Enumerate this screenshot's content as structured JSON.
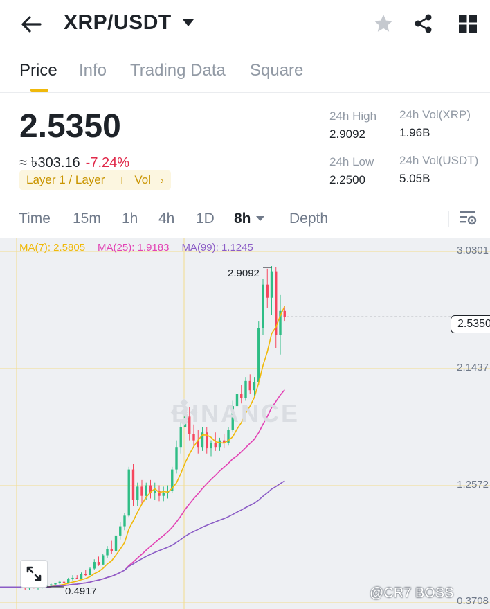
{
  "header": {
    "pair": "XRP/USDT",
    "icons": [
      "back-arrow-icon",
      "chevron-down-icon",
      "star-icon",
      "share-icon",
      "grid-icon"
    ]
  },
  "tabs": [
    {
      "label": "Price",
      "active": true
    },
    {
      "label": "Info",
      "active": false
    },
    {
      "label": "Trading Data",
      "active": false
    },
    {
      "label": "Square",
      "active": false
    }
  ],
  "ticker": {
    "last_price": "2.5350",
    "fiat_value": "≈ ৳303.16",
    "change_pct": "-7.24%",
    "tag_primary": "Layer 1 / Layer",
    "tag_secondary": "Vol",
    "tag_arrow": "›"
  },
  "stats": {
    "high_label": "24h High",
    "high_value": "2.9092",
    "low_label": "24h Low",
    "low_value": "2.2500",
    "vol_base_label": "24h Vol(XRP)",
    "vol_base_value": "1.96B",
    "vol_quote_label": "24h Vol(USDT)",
    "vol_quote_value": "5.05B"
  },
  "intervals": [
    {
      "label": "Time",
      "active": false
    },
    {
      "label": "15m",
      "active": false
    },
    {
      "label": "1h",
      "active": false
    },
    {
      "label": "4h",
      "active": false
    },
    {
      "label": "1D",
      "active": false
    },
    {
      "label": "8h",
      "active": true
    },
    {
      "label": "Depth",
      "active": false
    }
  ],
  "colors": {
    "up": "#2ebd85",
    "down": "#f6465d",
    "accent": "#f0b90b",
    "ma7": "#f0b90b",
    "ma25": "#e242b4",
    "ma99": "#8b5cc6"
  },
  "chart_data": {
    "type": "candlestick",
    "ma_legend": {
      "ma7": "MA(7): 2.5805",
      "ma25": "MA(25): 1.9183",
      "ma99": "MA(99): 1.1245"
    },
    "y_ticks": [
      "3.0301",
      "2.1437",
      "1.2572",
      "0.3708"
    ],
    "ylim": [
      0.3708,
      3.0301
    ],
    "last_price_label": "2.5350",
    "high_marker": "2.9092",
    "low_marker": "0.4917",
    "watermark": "BINANCE",
    "candles": [
      [
        0.49,
        0.5,
        0.48,
        0.49
      ],
      [
        0.49,
        0.49,
        0.47,
        0.48
      ],
      [
        0.48,
        0.5,
        0.47,
        0.49
      ],
      [
        0.49,
        0.5,
        0.48,
        0.48
      ],
      [
        0.48,
        0.49,
        0.47,
        0.49
      ],
      [
        0.49,
        0.51,
        0.48,
        0.5
      ],
      [
        0.5,
        0.51,
        0.49,
        0.5
      ],
      [
        0.5,
        0.52,
        0.5,
        0.51
      ],
      [
        0.51,
        0.52,
        0.5,
        0.52
      ],
      [
        0.52,
        0.54,
        0.51,
        0.53
      ],
      [
        0.53,
        0.54,
        0.52,
        0.52
      ],
      [
        0.52,
        0.56,
        0.52,
        0.55
      ],
      [
        0.55,
        0.58,
        0.54,
        0.56
      ],
      [
        0.56,
        0.58,
        0.55,
        0.55
      ],
      [
        0.55,
        0.6,
        0.55,
        0.59
      ],
      [
        0.59,
        0.62,
        0.57,
        0.58
      ],
      [
        0.58,
        0.64,
        0.58,
        0.63
      ],
      [
        0.63,
        0.7,
        0.62,
        0.68
      ],
      [
        0.68,
        0.72,
        0.65,
        0.66
      ],
      [
        0.66,
        0.74,
        0.66,
        0.73
      ],
      [
        0.73,
        0.8,
        0.71,
        0.78
      ],
      [
        0.78,
        0.84,
        0.74,
        0.76
      ],
      [
        0.76,
        0.9,
        0.75,
        0.88
      ],
      [
        0.88,
        0.98,
        0.85,
        0.95
      ],
      [
        0.95,
        1.05,
        0.92,
        1.03
      ],
      [
        1.03,
        1.4,
        1.02,
        1.38
      ],
      [
        1.38,
        1.42,
        1.1,
        1.15
      ],
      [
        1.15,
        1.28,
        1.1,
        1.25
      ],
      [
        1.25,
        1.3,
        1.12,
        1.18
      ],
      [
        1.18,
        1.28,
        1.15,
        1.26
      ],
      [
        1.26,
        1.3,
        1.16,
        1.2
      ],
      [
        1.2,
        1.28,
        1.15,
        1.22
      ],
      [
        1.22,
        1.26,
        1.14,
        1.18
      ],
      [
        1.18,
        1.25,
        1.14,
        1.2
      ],
      [
        1.2,
        1.26,
        1.16,
        1.22
      ],
      [
        1.22,
        1.4,
        1.2,
        1.38
      ],
      [
        1.38,
        1.6,
        1.35,
        1.55
      ],
      [
        1.55,
        1.75,
        1.5,
        1.7
      ],
      [
        1.7,
        1.82,
        1.62,
        1.78
      ],
      [
        1.78,
        1.85,
        1.6,
        1.65
      ],
      [
        1.65,
        1.72,
        1.55,
        1.6
      ],
      [
        1.6,
        1.68,
        1.5,
        1.55
      ],
      [
        1.55,
        1.7,
        1.52,
        1.66
      ],
      [
        1.66,
        1.7,
        1.5,
        1.54
      ],
      [
        1.54,
        1.6,
        1.48,
        1.58
      ],
      [
        1.58,
        1.66,
        1.52,
        1.55
      ],
      [
        1.55,
        1.62,
        1.52,
        1.6
      ],
      [
        1.6,
        1.65,
        1.54,
        1.58
      ],
      [
        1.58,
        1.7,
        1.56,
        1.68
      ],
      [
        1.68,
        1.9,
        1.66,
        1.86
      ],
      [
        1.86,
        2.0,
        1.82,
        1.95
      ],
      [
        1.95,
        2.02,
        1.88,
        1.92
      ],
      [
        1.92,
        2.08,
        1.9,
        2.05
      ],
      [
        2.05,
        2.1,
        1.95,
        1.98
      ],
      [
        1.98,
        2.08,
        1.92,
        2.04
      ],
      [
        2.04,
        2.5,
        2.02,
        2.45
      ],
      [
        2.45,
        2.82,
        2.4,
        2.78
      ],
      [
        2.78,
        2.9,
        2.6,
        2.68
      ],
      [
        2.68,
        2.92,
        2.55,
        2.88
      ],
      [
        2.88,
        2.91,
        2.3,
        2.4
      ],
      [
        2.4,
        2.7,
        2.25,
        2.58
      ],
      [
        2.58,
        2.62,
        2.5,
        2.535
      ]
    ]
  },
  "footer": {
    "credit": "@CR7 BOSS"
  }
}
